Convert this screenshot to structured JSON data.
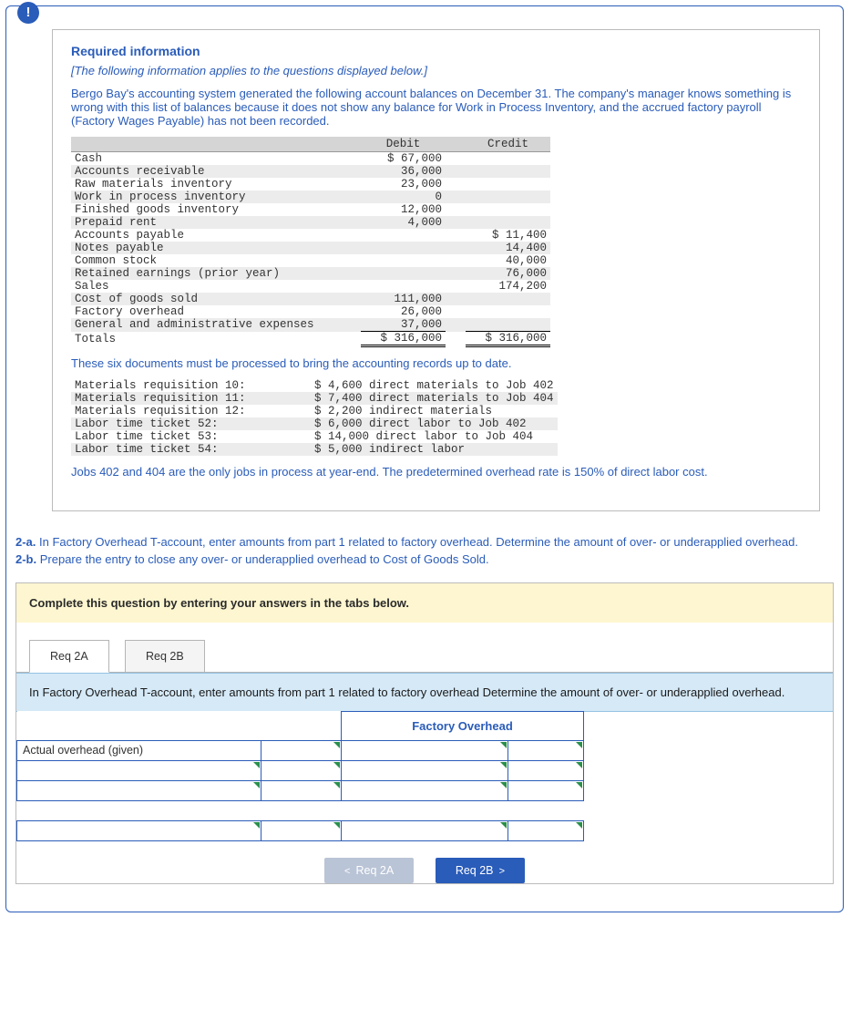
{
  "alert_glyph": "!",
  "info_box": {
    "title": "Required information",
    "italic": "[The following information applies to the questions displayed below.]",
    "intro": "Bergo Bay's accounting system generated the following account balances on December 31. The company's manager knows something is wrong with this list of balances because it does not show any balance for Work in Process Inventory, and the accrued factory payroll (Factory Wages Payable) has not been recorded.",
    "trial_balance": {
      "head_debit": "Debit",
      "head_credit": "Credit",
      "rows": [
        {
          "a": "Cash",
          "d": "$ 67,000",
          "c": ""
        },
        {
          "a": "Accounts receivable",
          "d": "36,000",
          "c": ""
        },
        {
          "a": "Raw materials inventory",
          "d": "23,000",
          "c": ""
        },
        {
          "a": "Work in process inventory",
          "d": "0",
          "c": ""
        },
        {
          "a": "Finished goods inventory",
          "d": "12,000",
          "c": ""
        },
        {
          "a": "Prepaid rent",
          "d": "4,000",
          "c": ""
        },
        {
          "a": "Accounts payable",
          "d": "",
          "c": "$ 11,400"
        },
        {
          "a": "Notes payable",
          "d": "",
          "c": "14,400"
        },
        {
          "a": "Common stock",
          "d": "",
          "c": "40,000"
        },
        {
          "a": "Retained earnings (prior year)",
          "d": "",
          "c": "76,000"
        },
        {
          "a": "Sales",
          "d": "",
          "c": "174,200"
        },
        {
          "a": "Cost of goods sold",
          "d": "111,000",
          "c": ""
        },
        {
          "a": "Factory overhead",
          "d": "26,000",
          "c": ""
        },
        {
          "a": "General and administrative expenses",
          "d": "37,000",
          "c": ""
        }
      ],
      "totals": {
        "a": "Totals",
        "d": "$ 316,000",
        "c": "$ 316,000"
      }
    },
    "post_tb": "These six documents must be processed to bring the accounting records up to date.",
    "docs": [
      {
        "l": "Materials requisition 10:",
        "r": "$ 4,600 direct materials to Job 402"
      },
      {
        "l": "Materials requisition 11:",
        "r": "$ 7,400 direct materials to Job 404"
      },
      {
        "l": "Materials requisition 12:",
        "r": "$ 2,200 indirect materials"
      },
      {
        "l": "Labor time ticket 52:",
        "r": "$ 6,000 direct labor to Job 402"
      },
      {
        "l": "Labor time ticket 53:",
        "r": "$ 14,000 direct labor to Job 404"
      },
      {
        "l": "Labor time ticket 54:",
        "r": "$ 5,000 indirect labor"
      }
    ],
    "post_docs": "Jobs 402 and 404 are the only jobs in process at year-end. The predetermined overhead rate is 150% of direct labor cost."
  },
  "question": {
    "part_a_label": "2-a.",
    "part_a_text": " In Factory Overhead T-account, enter amounts from part 1 related to factory overhead. Determine the amount of over- or underapplied overhead.",
    "part_b_label": "2-b.",
    "part_b_text": " Prepare the entry to close any over- or underapplied overhead to Cost of Goods Sold."
  },
  "answers": {
    "yellow": "Complete this question by entering your answers in the tabs below.",
    "tab1": "Req 2A",
    "tab2": "Req 2B",
    "blue": "In Factory Overhead T-account, enter amounts from part 1 related to factory overhead Determine the amount of over- or underapplied overhead.",
    "t_account_header": "Factory Overhead",
    "row1_desc": "Actual overhead (given)",
    "nav_prev": "Req 2A",
    "nav_next": "Req 2B"
  }
}
